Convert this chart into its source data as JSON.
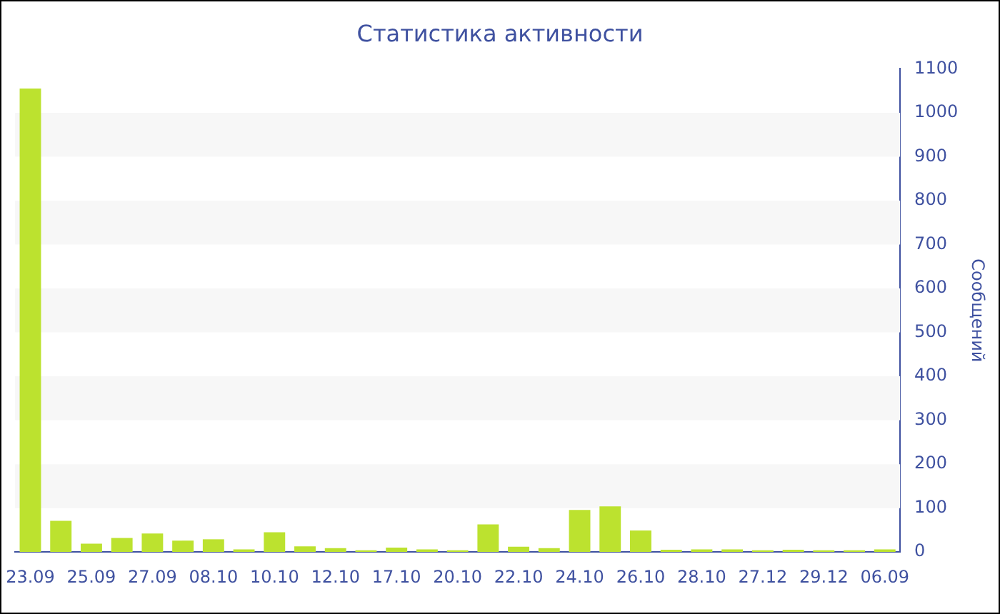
{
  "chart_data": {
    "type": "bar",
    "title": "Статистика активности",
    "ylabel": "Сообщений",
    "categories": [
      "23.09",
      null,
      "25.09",
      null,
      "27.09",
      null,
      "08.10",
      null,
      "10.10",
      null,
      "12.10",
      null,
      "17.10",
      null,
      "20.10",
      null,
      "22.10",
      null,
      "24.10",
      null,
      "26.10",
      null,
      "28.10",
      null,
      "27.12",
      null,
      "29.12",
      null,
      "06.09"
    ],
    "values": [
      1055,
      71,
      19,
      32,
      42,
      26,
      29,
      6,
      45,
      13,
      9,
      4,
      10,
      6,
      4,
      63,
      12,
      9,
      96,
      104,
      49,
      5,
      6,
      6,
      4,
      5,
      4,
      4,
      6
    ],
    "color": "#bce22f",
    "ylim": [
      0,
      1100
    ],
    "yticks": [
      0,
      100,
      200,
      300,
      400,
      500,
      600,
      700,
      800,
      900,
      1000,
      1100
    ],
    "bands": [
      {
        "axis": "y",
        "from": 100,
        "to": 200,
        "color": "#f7f7f7"
      },
      {
        "axis": "y",
        "from": 300,
        "to": 400,
        "color": "#f7f7f7"
      },
      {
        "axis": "y",
        "from": 500,
        "to": 600,
        "color": "#f7f7f7"
      },
      {
        "axis": "y",
        "from": 700,
        "to": 800,
        "color": "#f7f7f7"
      },
      {
        "axis": "y",
        "from": 900,
        "to": 1000,
        "color": "#f7f7f7"
      }
    ]
  }
}
